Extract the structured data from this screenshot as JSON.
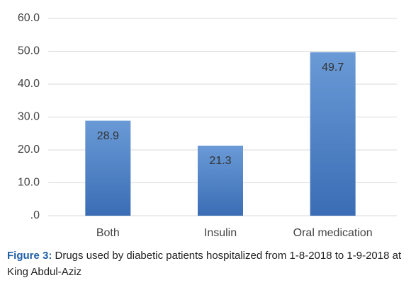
{
  "chart_data": {
    "type": "bar",
    "categories": [
      "Both",
      "Insulin",
      "Oral medication"
    ],
    "values": [
      28.9,
      21.3,
      49.7
    ],
    "color": "#3f74bd",
    "ylim": [
      0,
      60
    ],
    "yticks": [
      {
        "value": 0,
        "label": ".0"
      },
      {
        "value": 10,
        "label": "10.0"
      },
      {
        "value": 20,
        "label": "20.0"
      },
      {
        "value": 30,
        "label": "30.0"
      },
      {
        "value": 40,
        "label": "40.0"
      },
      {
        "value": 50,
        "label": "50.0"
      },
      {
        "value": 60,
        "label": "60.0"
      }
    ],
    "grid": true,
    "caption_label": "Figure 3:",
    "caption": "Drugs used by diabetic patients hospitalized from 1-8-2018 to 1-9-2018 at King Abdul-Aziz"
  }
}
